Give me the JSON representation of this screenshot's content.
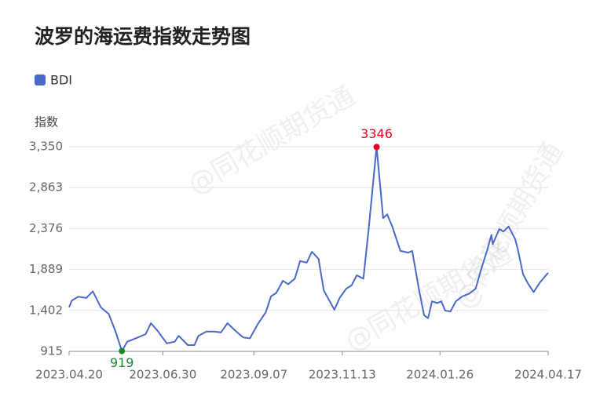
{
  "chart_data": {
    "type": "line",
    "title": "波罗的海运费指数走势图",
    "y_label": "指数",
    "watermark": "@同花顺期货通",
    "x": [
      "2023.04.20",
      "2023.04.22",
      "2023.04.27",
      "2023.05.03",
      "2023.05.08",
      "2023.05.14",
      "2023.05.20",
      "2023.05.25",
      "2023.05.30",
      "2023.06.03",
      "2023.06.11",
      "2023.06.17",
      "2023.06.21",
      "2023.06.26",
      "2023.07.03",
      "2023.07.09",
      "2023.07.12",
      "2023.07.19",
      "2023.07.24",
      "2023.07.27",
      "2023.08.02",
      "2023.08.08",
      "2023.08.13",
      "2023.08.18",
      "2023.08.24",
      "2023.08.30",
      "2023.09.04",
      "2023.09.10",
      "2023.09.16",
      "2023.09.20",
      "2023.09.24",
      "2023.09.29",
      "2023.10.03",
      "2023.10.08",
      "2023.10.12",
      "2023.10.17",
      "2023.10.21",
      "2023.10.26",
      "2023.10.30",
      "2023.11.07",
      "2023.11.11",
      "2023.11.16",
      "2023.11.20",
      "2023.11.24",
      "2023.11.29",
      "2023.12.03",
      "2023.12.06",
      "2023.12.09",
      "2023.12.14",
      "2023.12.17",
      "2023.12.21",
      "2023.12.27",
      "2024.01.02",
      "2024.01.05",
      "2024.01.10",
      "2024.01.14",
      "2024.01.17",
      "2024.01.20",
      "2024.01.24",
      "2024.01.27",
      "2024.01.30",
      "2024.02.03",
      "2024.02.07",
      "2024.02.12",
      "2024.02.17",
      "2024.02.22",
      "2024.02.26",
      "2024.03.02",
      "2024.03.05",
      "2024.03.06",
      "2024.03.11",
      "2024.03.14",
      "2024.03.18",
      "2024.03.23",
      "2024.03.25",
      "2024.03.29",
      "2024.04.02",
      "2024.04.06",
      "2024.04.11",
      "2024.04.17"
    ],
    "series": [
      {
        "name": "BDI",
        "color": "#4a68c7",
        "values": [
          1440,
          1520,
          1565,
          1550,
          1630,
          1440,
          1360,
          1160,
          919,
          1030,
          1080,
          1120,
          1250,
          1160,
          1010,
          1030,
          1100,
          990,
          990,
          1100,
          1150,
          1150,
          1140,
          1250,
          1160,
          1080,
          1070,
          1240,
          1380,
          1570,
          1610,
          1755,
          1715,
          1780,
          1990,
          1970,
          2100,
          2015,
          1640,
          1410,
          1550,
          1660,
          1700,
          1820,
          1780,
          2376,
          2860,
          3346,
          2500,
          2545,
          2395,
          2110,
          2090,
          2110,
          1660,
          1345,
          1310,
          1510,
          1490,
          1510,
          1400,
          1390,
          1510,
          1570,
          1600,
          1660,
          1880,
          2130,
          2300,
          2190,
          2370,
          2340,
          2400,
          2250,
          2130,
          1830,
          1715,
          1620,
          1740,
          1850
        ]
      }
    ],
    "annotations": [
      {
        "x": "2023.12.09",
        "value": 3346,
        "color": "#e8001c"
      },
      {
        "x": "2023.05.30",
        "value": 919,
        "color": "#1a8a2e"
      }
    ],
    "ylim": [
      915,
      3350
    ],
    "yticks": [
      915,
      {
        "value": 1402,
        "label": "1,402"
      },
      {
        "value": 1889,
        "label": "1,889"
      },
      {
        "value": 2376,
        "label": "2,376"
      },
      {
        "value": 2863,
        "label": "2,863"
      },
      {
        "value": 3350,
        "label": "3,350"
      }
    ],
    "xlim": [
      "2023.04.20",
      "2024.04.17"
    ],
    "xticks": [
      "2023.04.20",
      "2023.06.30",
      "2023.09.07",
      "2023.11.13",
      "2024.01.26",
      "2024.04.17"
    ],
    "grid": true
  }
}
